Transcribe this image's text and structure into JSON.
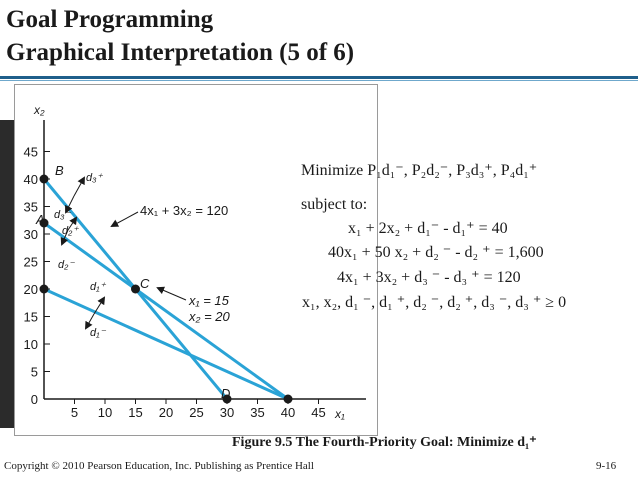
{
  "slide": {
    "title_line1": "Goal Programming",
    "title_line2": "Graphical Interpretation (5 of 6)",
    "caption": "Figure 9.5  The Fourth-Priority Goal:  Minimize d₁⁺",
    "copyright": "Copyright © 2010 Pearson Education, Inc. Publishing as Prentice Hall",
    "page_number": "9-16"
  },
  "colors": {
    "title_rule": "#1f5f8b",
    "constraint_line": "#2aa3d6",
    "text": "#1a1a1a"
  },
  "model": {
    "objective": "Minimize  P₁d₁⁻, P₂d₂⁻, P₃d₃⁺, P₄d₁⁺",
    "subject_to": "subject to:",
    "constraints": [
      "x₁ + 2x₂ + d₁⁻ - d₁⁺ = 40",
      "40x₁ + 50 x₂ + d₂ ⁻ - d₂ ⁺ = 1,600",
      "4x₁ + 3x₂ + d₃ ⁻ - d₃ ⁺ = 120",
      "x₁, x₂, d₁ ⁻, d₁ ⁺, d₂ ⁻, d₂ ⁺, d₃ ⁻, d₃ ⁺ ≥ 0"
    ]
  },
  "graph": {
    "x_axis_label": "x₁",
    "y_axis_label": "x₂",
    "x_ticks": [
      "5",
      "10",
      "15",
      "20",
      "25",
      "30",
      "35",
      "40",
      "45"
    ],
    "y_ticks": [
      "0",
      "5",
      "10",
      "15",
      "20",
      "25",
      "30",
      "35",
      "40",
      "45"
    ],
    "x_tick_values": [
      5,
      10,
      15,
      20,
      25,
      30,
      35,
      40,
      45
    ],
    "y_tick_values": [
      0,
      5,
      10,
      15,
      20,
      25,
      30,
      35,
      40,
      45
    ],
    "point_labels": {
      "A": "A",
      "B": "B",
      "C": "C",
      "D": "D"
    },
    "points": {
      "A": [
        0,
        32
      ],
      "B": [
        0,
        40
      ],
      "C": [
        15,
        20
      ],
      "D": [
        30,
        0
      ],
      "E": [
        40,
        0
      ],
      "Y20": [
        0,
        20
      ]
    },
    "lines": [
      {
        "from": [
          0,
          20
        ],
        "to": [
          40,
          0
        ]
      },
      {
        "from": [
          0,
          32
        ],
        "to": [
          40,
          0
        ]
      },
      {
        "from": [
          0,
          40
        ],
        "to": [
          30,
          0
        ]
      }
    ],
    "deviation_labels": {
      "d3_plus": "d₃⁺",
      "d3_minus": "d₃⁻",
      "d2_plus": "d₂⁺",
      "d2_minus": "d₂⁻",
      "d1_plus": "d₁⁺",
      "d1_minus": "d₁⁻"
    },
    "annotations": {
      "line3_label": "4x₁ + 3x₂ = 120",
      "point_c_x": "x₁ = 15",
      "point_c_y": "x₂ = 20"
    }
  }
}
